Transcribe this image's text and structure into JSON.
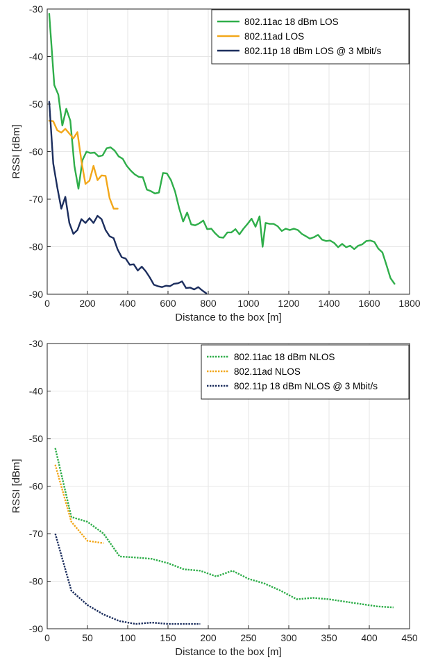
{
  "chart_data": [
    {
      "type": "line",
      "title": "",
      "xlabel": "Distance to the box [m]",
      "ylabel": "RSSI [dBm]",
      "xlim": [
        0,
        1800
      ],
      "ylim": [
        -90,
        -30
      ],
      "xticks": [
        0,
        200,
        400,
        600,
        800,
        1000,
        1200,
        1400,
        1600,
        1800
      ],
      "yticks": [
        -30,
        -40,
        -50,
        -60,
        -70,
        -80,
        -90
      ],
      "grid": true,
      "legend_position": "top-right",
      "series": [
        {
          "name": "802.11ac 18 dBm LOS",
          "color": "#2fae4a",
          "style": "solid",
          "points": [
            [
              10,
              -31
            ],
            [
              35,
              -46
            ],
            [
              55,
              -48
            ],
            [
              75,
              -54.5
            ],
            [
              95,
              -51
            ],
            [
              115,
              -53.5
            ],
            [
              135,
              -63
            ],
            [
              155,
              -67.8
            ],
            [
              175,
              -61.8
            ],
            [
              195,
              -60
            ],
            [
              215,
              -60.3
            ],
            [
              235,
              -60.2
            ],
            [
              255,
              -61
            ],
            [
              275,
              -60.8
            ],
            [
              295,
              -59.3
            ],
            [
              315,
              -59.1
            ],
            [
              335,
              -59.8
            ],
            [
              355,
              -61
            ],
            [
              375,
              -61.5
            ],
            [
              395,
              -63
            ],
            [
              415,
              -64
            ],
            [
              435,
              -64.8
            ],
            [
              455,
              -65.3
            ],
            [
              475,
              -65.4
            ],
            [
              495,
              -68
            ],
            [
              515,
              -68.3
            ],
            [
              535,
              -68.8
            ],
            [
              555,
              -68.6
            ],
            [
              575,
              -64.5
            ],
            [
              595,
              -64.6
            ],
            [
              615,
              -66
            ],
            [
              635,
              -68.4
            ],
            [
              655,
              -71.8
            ],
            [
              675,
              -74.7
            ],
            [
              695,
              -72.8
            ],
            [
              715,
              -75.3
            ],
            [
              735,
              -75.5
            ],
            [
              755,
              -75.1
            ],
            [
              775,
              -74.5
            ],
            [
              795,
              -76.3
            ],
            [
              815,
              -76.2
            ],
            [
              835,
              -77.2
            ],
            [
              855,
              -78
            ],
            [
              875,
              -78.1
            ],
            [
              895,
              -77
            ],
            [
              915,
              -77
            ],
            [
              935,
              -76.3
            ],
            [
              955,
              -77.4
            ],
            [
              975,
              -76.2
            ],
            [
              995,
              -75.2
            ],
            [
              1015,
              -74.1
            ],
            [
              1035,
              -75.8
            ],
            [
              1055,
              -73.6
            ],
            [
              1070,
              -80
            ],
            [
              1085,
              -75
            ],
            [
              1105,
              -75.2
            ],
            [
              1125,
              -75.2
            ],
            [
              1145,
              -75.7
            ],
            [
              1165,
              -76.7
            ],
            [
              1185,
              -76.2
            ],
            [
              1205,
              -76.5
            ],
            [
              1225,
              -76.2
            ],
            [
              1245,
              -76.5
            ],
            [
              1265,
              -77.3
            ],
            [
              1285,
              -77.8
            ],
            [
              1305,
              -78.3
            ],
            [
              1325,
              -78
            ],
            [
              1345,
              -77.5
            ],
            [
              1365,
              -78.5
            ],
            [
              1385,
              -78.8
            ],
            [
              1405,
              -78.7
            ],
            [
              1425,
              -79.2
            ],
            [
              1445,
              -80.1
            ],
            [
              1465,
              -79.4
            ],
            [
              1485,
              -80.1
            ],
            [
              1505,
              -79.8
            ],
            [
              1525,
              -80.5
            ],
            [
              1545,
              -79.8
            ],
            [
              1565,
              -79.5
            ],
            [
              1585,
              -78.8
            ],
            [
              1605,
              -78.7
            ],
            [
              1625,
              -79
            ],
            [
              1645,
              -80.4
            ],
            [
              1665,
              -81.2
            ],
            [
              1685,
              -83.8
            ],
            [
              1705,
              -86.6
            ],
            [
              1725,
              -87.8
            ]
          ]
        },
        {
          "name": "802.11ad LOS",
          "color": "#f2a71a",
          "style": "solid",
          "points": [
            [
              10,
              -53.5
            ],
            [
              30,
              -53.6
            ],
            [
              50,
              -55.5
            ],
            [
              70,
              -56
            ],
            [
              90,
              -55.2
            ],
            [
              110,
              -56.2
            ],
            [
              130,
              -57.2
            ],
            [
              150,
              -55.9
            ],
            [
              170,
              -62
            ],
            [
              190,
              -66.8
            ],
            [
              210,
              -66.1
            ],
            [
              230,
              -63
            ],
            [
              250,
              -66
            ],
            [
              270,
              -65
            ],
            [
              290,
              -65.1
            ],
            [
              310,
              -69.8
            ],
            [
              330,
              -72
            ],
            [
              350,
              -72
            ]
          ]
        },
        {
          "name": "802.11p 18 dBm LOS @ 3 Mbit/s",
          "color": "#1c2e5e",
          "style": "solid",
          "points": [
            [
              10,
              -49.5
            ],
            [
              30,
              -62.5
            ],
            [
              50,
              -67.5
            ],
            [
              70,
              -72
            ],
            [
              90,
              -69.5
            ],
            [
              110,
              -75
            ],
            [
              130,
              -77.3
            ],
            [
              150,
              -76.5
            ],
            [
              170,
              -74.2
            ],
            [
              190,
              -75
            ],
            [
              210,
              -74
            ],
            [
              230,
              -75
            ],
            [
              250,
              -73.5
            ],
            [
              270,
              -74.2
            ],
            [
              290,
              -76.5
            ],
            [
              310,
              -77.8
            ],
            [
              330,
              -78.2
            ],
            [
              350,
              -80.6
            ],
            [
              370,
              -82.2
            ],
            [
              390,
              -82.5
            ],
            [
              410,
              -83.8
            ],
            [
              430,
              -83.7
            ],
            [
              450,
              -85
            ],
            [
              470,
              -84.2
            ],
            [
              490,
              -85.2
            ],
            [
              510,
              -86.5
            ],
            [
              530,
              -88
            ],
            [
              550,
              -88.3
            ],
            [
              570,
              -88.5
            ],
            [
              590,
              -88.2
            ],
            [
              610,
              -88.3
            ],
            [
              630,
              -87.8
            ],
            [
              650,
              -87.7
            ],
            [
              670,
              -87.3
            ],
            [
              690,
              -88.7
            ],
            [
              710,
              -88.6
            ],
            [
              730,
              -89
            ],
            [
              750,
              -88.5
            ],
            [
              770,
              -89.2
            ],
            [
              790,
              -89.8
            ]
          ]
        }
      ]
    },
    {
      "type": "line",
      "title": "",
      "xlabel": "Distance to the box [m]",
      "ylabel": "RSSI [dBm]",
      "xlim": [
        0,
        450
      ],
      "ylim": [
        -90,
        -30
      ],
      "xticks": [
        0,
        50,
        100,
        150,
        200,
        250,
        300,
        350,
        400,
        450
      ],
      "yticks": [
        -30,
        -40,
        -50,
        -60,
        -70,
        -80,
        -90
      ],
      "grid": true,
      "legend_position": "top-right",
      "series": [
        {
          "name": "802.11ac 18 dBm NLOS",
          "color": "#2fae4a",
          "style": "dotted",
          "points": [
            [
              10,
              -52
            ],
            [
              30,
              -66.5
            ],
            [
              50,
              -67.5
            ],
            [
              70,
              -70
            ],
            [
              90,
              -74.8
            ],
            [
              110,
              -75
            ],
            [
              130,
              -75.3
            ],
            [
              150,
              -76.2
            ],
            [
              170,
              -77.5
            ],
            [
              190,
              -77.8
            ],
            [
              210,
              -79
            ],
            [
              230,
              -77.8
            ],
            [
              250,
              -79.5
            ],
            [
              270,
              -80.5
            ],
            [
              290,
              -82
            ],
            [
              310,
              -83.8
            ],
            [
              330,
              -83.5
            ],
            [
              350,
              -83.8
            ],
            [
              370,
              -84.3
            ],
            [
              390,
              -84.8
            ],
            [
              410,
              -85.3
            ],
            [
              430,
              -85.5
            ]
          ]
        },
        {
          "name": "802.11ad NLOS",
          "color": "#f2a71a",
          "style": "dotted",
          "points": [
            [
              10,
              -55.5
            ],
            [
              30,
              -67.5
            ],
            [
              50,
              -71.5
            ],
            [
              70,
              -72
            ]
          ]
        },
        {
          "name": "802.11p 18 dBm NLOS @ 3 Mbit/s",
          "color": "#1c2e5e",
          "style": "dotted",
          "points": [
            [
              10,
              -70
            ],
            [
              30,
              -82
            ],
            [
              50,
              -85
            ],
            [
              70,
              -87
            ],
            [
              90,
              -88.4
            ],
            [
              110,
              -89
            ],
            [
              130,
              -88.7
            ],
            [
              150,
              -89
            ],
            [
              170,
              -89
            ],
            [
              190,
              -89
            ]
          ]
        }
      ]
    }
  ]
}
